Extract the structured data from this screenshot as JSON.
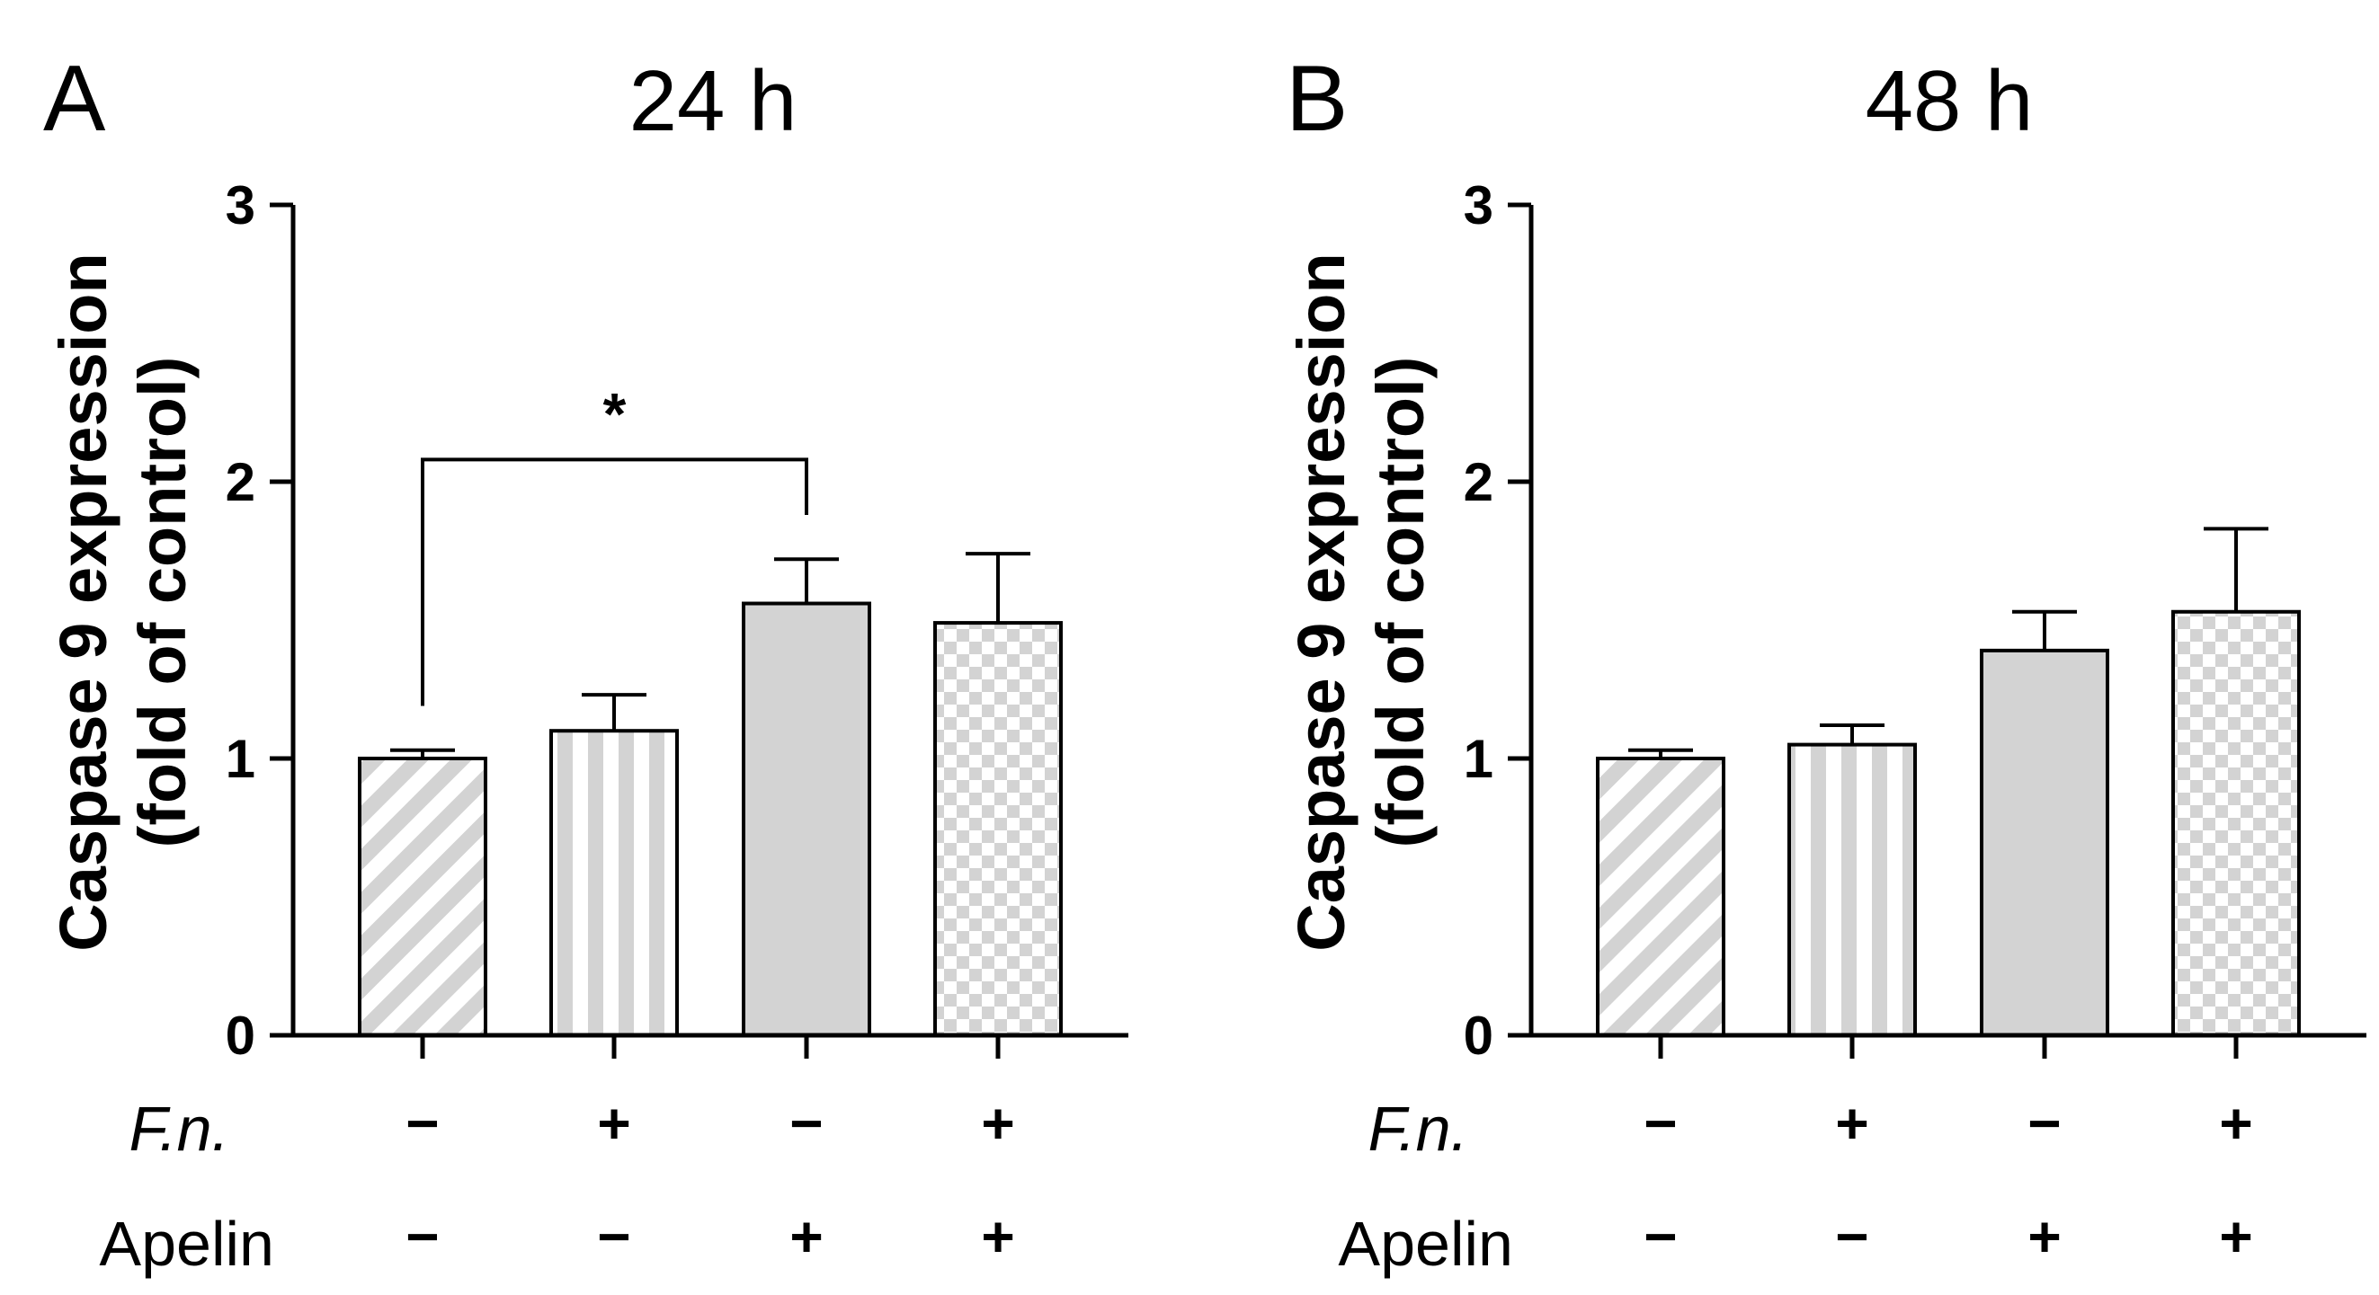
{
  "chart_data": [
    {
      "type": "bar",
      "panel": "A",
      "title": "24 h",
      "ylabel_line1": "Caspase 9 expression",
      "ylabel_line2": "(fold of control)",
      "ylim": [
        0,
        3
      ],
      "yticks": [
        "0",
        "1",
        "2",
        "3"
      ],
      "values": [
        1.0,
        1.1,
        1.56,
        1.49
      ],
      "errors": [
        0.03,
        0.13,
        0.16,
        0.25
      ],
      "significance": {
        "from": 0,
        "to": 2,
        "label": "*",
        "level": 2.08
      }
    },
    {
      "type": "bar",
      "panel": "B",
      "title": "48 h",
      "ylabel_line1": "Caspase 9 expression",
      "ylabel_line2": "(fold of control)",
      "ylim": [
        0,
        3
      ],
      "yticks": [
        "0",
        "1",
        "2",
        "3"
      ],
      "values": [
        1.0,
        1.05,
        1.39,
        1.53
      ],
      "errors": [
        0.03,
        0.07,
        0.14,
        0.3
      ]
    }
  ],
  "row_labels": {
    "fn": "F.n.",
    "apelin": "Apelin"
  },
  "fn_signs": [
    "−",
    "+",
    "−",
    "+"
  ],
  "apelin_signs": [
    "−",
    "−",
    "+",
    "+"
  ],
  "bar_patterns": [
    "diagonal-stripes",
    "vertical-stripes",
    "solid-gray",
    "checkerboard"
  ],
  "colors": {
    "bar_fill": "#d3d3d3",
    "axis": "#000000",
    "background": "#ffffff"
  }
}
